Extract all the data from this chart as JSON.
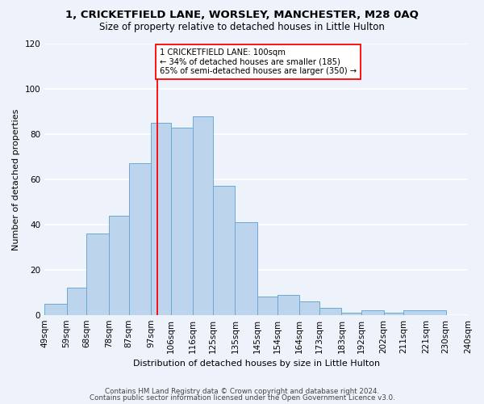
{
  "title1": "1, CRICKETFIELD LANE, WORSLEY, MANCHESTER, M28 0AQ",
  "title2": "Size of property relative to detached houses in Little Hulton",
  "xlabel": "Distribution of detached houses by size in Little Hulton",
  "ylabel": "Number of detached properties",
  "bar_heights": [
    5,
    12,
    36,
    44,
    67,
    85,
    83,
    88,
    57,
    41,
    8,
    9,
    6,
    3,
    1,
    2,
    1,
    2
  ],
  "bar_lefts": [
    49,
    59,
    68,
    78,
    87,
    97,
    106,
    116,
    125,
    135,
    145,
    154,
    164,
    173,
    183,
    192,
    202,
    211
  ],
  "bar_widths": [
    10,
    9,
    10,
    9,
    10,
    9,
    10,
    9,
    10,
    10,
    9,
    10,
    9,
    10,
    9,
    10,
    9,
    19
  ],
  "xtick_positions": [
    49,
    59,
    68,
    78,
    87,
    97,
    106,
    116,
    125,
    135,
    145,
    154,
    164,
    173,
    183,
    192,
    202,
    211,
    221,
    230,
    240
  ],
  "xtick_labels": [
    "49sqm",
    "59sqm",
    "68sqm",
    "78sqm",
    "87sqm",
    "97sqm",
    "106sqm",
    "116sqm",
    "125sqm",
    "135sqm",
    "145sqm",
    "154sqm",
    "164sqm",
    "173sqm",
    "183sqm",
    "192sqm",
    "202sqm",
    "211sqm",
    "221sqm",
    "230sqm",
    "240sqm"
  ],
  "bar_color": "#bdd4ed",
  "bar_edge_color": "#6aaad4",
  "vline_x": 100,
  "vline_color": "red",
  "annotation_text": "1 CRICKETFIELD LANE: 100sqm\n← 34% of detached houses are smaller (185)\n65% of semi-detached houses are larger (350) →",
  "annotation_box_color": "white",
  "annotation_box_edge": "red",
  "ylim": [
    0,
    120
  ],
  "yticks": [
    0,
    20,
    40,
    60,
    80,
    100,
    120
  ],
  "xlim": [
    49,
    240
  ],
  "footer1": "Contains HM Land Registry data © Crown copyright and database right 2024.",
  "footer2": "Contains public sector information licensed under the Open Government Licence v3.0.",
  "bg_color": "#eef2fb",
  "plot_bg_color": "#eef2fb",
  "grid_color": "#ffffff"
}
